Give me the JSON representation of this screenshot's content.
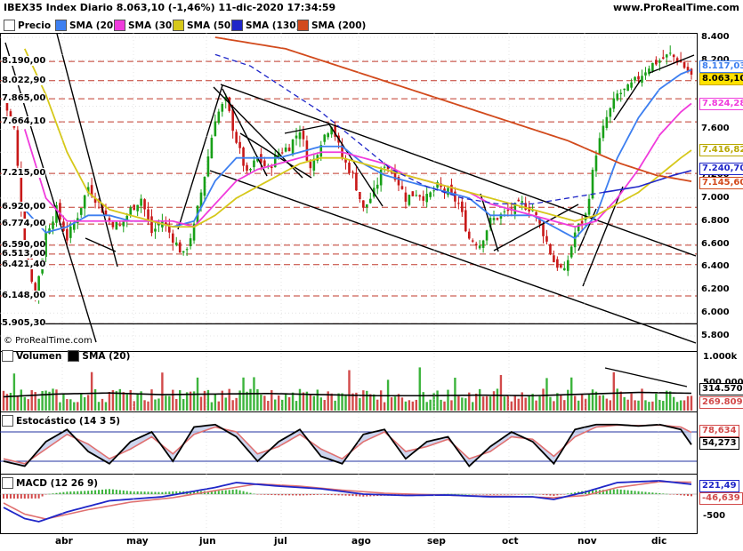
{
  "header": {
    "title": "IBEX35 Index Diario 8.063,10 (-1,46%) 11-dic-2020 17:34:59",
    "site": "www.ProRealTime.com",
    "copyright": "© ProRealTime.com"
  },
  "legend": [
    {
      "label": "Precio",
      "color": "#ffffff"
    },
    {
      "label": "SMA (20)",
      "color": "#3d7ff0"
    },
    {
      "label": "SMA (30)",
      "color": "#f03cdc"
    },
    {
      "label": "SMA (50)",
      "color": "#d6c81a"
    },
    {
      "label": "SMA (130)",
      "color": "#1f26c8"
    },
    {
      "label": "SMA (200)",
      "color": "#d24a1c"
    }
  ],
  "panes": {
    "volume": {
      "label": "Volumen",
      "sma_label": "SMA (20)"
    },
    "stochastic": {
      "label": "Estocástico (14 3 5)"
    },
    "macd": {
      "label": "MACD (12 26 9)"
    }
  },
  "levels": [
    "8.190,00",
    "8.022,90",
    "7.865,00",
    "7.664,10",
    "7.215,00",
    "6.920,00",
    "6.774,00",
    "6.590,00",
    "6.513,00",
    "6.421,40",
    "6.148,00",
    "5.905,30"
  ],
  "value_tags": [
    {
      "text": "8.117,03",
      "color": "#3d7ff0",
      "bg": "#ffffff"
    },
    {
      "text": "8.063,10",
      "color": "#000000",
      "bg": "#ffe200"
    },
    {
      "text": "7.824,28",
      "color": "#f03cdc",
      "bg": "#ffffff"
    },
    {
      "text": "7.416,82",
      "color": "#b8a800",
      "bg": "#ffffff"
    },
    {
      "text": "7.240,70",
      "color": "#1f26c8",
      "bg": "#ffffff"
    },
    {
      "text": "7.145,60",
      "color": "#d24a1c",
      "bg": "#ffffff"
    }
  ],
  "price_ticks": [
    "8.400",
    "8.200",
    "8.000",
    "7.800",
    "7.600",
    "7.400",
    "7.200",
    "7.000",
    "6.800",
    "6.600",
    "6.400",
    "6.200",
    "6.000",
    "5.800"
  ],
  "volume_ticks": [
    "1.000k",
    "500.000"
  ],
  "volume_tags": [
    {
      "text": "314.570",
      "color": "#000000"
    },
    {
      "text": "269.809",
      "color": "#d24a4a"
    }
  ],
  "stoch_tags": [
    {
      "text": "78,634",
      "color": "#d24a4a"
    },
    {
      "text": "54,273",
      "color": "#000000"
    }
  ],
  "macd_ticks": [
    "500",
    "-500"
  ],
  "macd_tags": [
    {
      "text": "221,49",
      "color": "#1f26c8"
    },
    {
      "text": "-46,639",
      "color": "#d24a4a"
    }
  ],
  "months": [
    "abr",
    "may",
    "jun",
    "jul",
    "ago",
    "sep",
    "oct",
    "nov",
    "dic"
  ],
  "chart_data": {
    "type": "candlestick",
    "instrument": "IBEX35 Index Diario",
    "last": 8063.1,
    "change_pct": -1.46,
    "ylim": [
      5750,
      8450
    ],
    "price_path": [
      [
        0,
        7850
      ],
      [
        3,
        7600
      ],
      [
        6,
        6600
      ],
      [
        9,
        6150
      ],
      [
        12,
        6700
      ],
      [
        15,
        6900
      ],
      [
        18,
        6650
      ],
      [
        21,
        6850
      ],
      [
        24,
        7100
      ],
      [
        27,
        6950
      ],
      [
        30,
        6800
      ],
      [
        33,
        6750
      ],
      [
        36,
        6900
      ],
      [
        39,
        7000
      ],
      [
        42,
        6700
      ],
      [
        45,
        6800
      ],
      [
        48,
        6650
      ],
      [
        51,
        6500
      ],
      [
        54,
        6750
      ],
      [
        57,
        7200
      ],
      [
        60,
        7700
      ],
      [
        63,
        7850
      ],
      [
        66,
        7500
      ],
      [
        69,
        7200
      ],
      [
        72,
        7350
      ],
      [
        75,
        7250
      ],
      [
        78,
        7400
      ],
      [
        81,
        7450
      ],
      [
        84,
        7600
      ],
      [
        87,
        7250
      ],
      [
        90,
        7500
      ],
      [
        93,
        7650
      ],
      [
        96,
        7350
      ],
      [
        99,
        7200
      ],
      [
        102,
        6900
      ],
      [
        105,
        7050
      ],
      [
        108,
        7300
      ],
      [
        111,
        7200
      ],
      [
        114,
        7000
      ],
      [
        117,
        7050
      ],
      [
        120,
        7000
      ],
      [
        123,
        7100
      ],
      [
        126,
        7050
      ],
      [
        129,
        6950
      ],
      [
        132,
        6650
      ],
      [
        135,
        6600
      ],
      [
        138,
        6800
      ],
      [
        141,
        6850
      ],
      [
        144,
        6900
      ],
      [
        147,
        6950
      ],
      [
        150,
        6900
      ],
      [
        153,
        6700
      ],
      [
        156,
        6450
      ],
      [
        159,
        6350
      ],
      [
        162,
        6700
      ],
      [
        165,
        6850
      ],
      [
        168,
        7400
      ],
      [
        171,
        7700
      ],
      [
        174,
        7900
      ],
      [
        177,
        7950
      ],
      [
        180,
        8050
      ],
      [
        183,
        8150
      ],
      [
        186,
        8200
      ],
      [
        189,
        8250
      ],
      [
        192,
        8180
      ],
      [
        195,
        8063
      ]
    ],
    "series": [
      {
        "name": "SMA (20)",
        "color": "#3d7ff0",
        "values": [
          [
            6,
            6900
          ],
          [
            12,
            6700
          ],
          [
            18,
            6750
          ],
          [
            24,
            6850
          ],
          [
            30,
            6850
          ],
          [
            36,
            6800
          ],
          [
            42,
            6800
          ],
          [
            48,
            6750
          ],
          [
            54,
            6800
          ],
          [
            60,
            7150
          ],
          [
            66,
            7350
          ],
          [
            72,
            7350
          ],
          [
            78,
            7350
          ],
          [
            84,
            7400
          ],
          [
            90,
            7450
          ],
          [
            96,
            7450
          ],
          [
            102,
            7300
          ],
          [
            108,
            7200
          ],
          [
            114,
            7150
          ],
          [
            120,
            7100
          ],
          [
            126,
            7050
          ],
          [
            132,
            7000
          ],
          [
            138,
            6850
          ],
          [
            144,
            6850
          ],
          [
            150,
            6850
          ],
          [
            156,
            6750
          ],
          [
            162,
            6650
          ],
          [
            168,
            6850
          ],
          [
            174,
            7350
          ],
          [
            180,
            7700
          ],
          [
            186,
            7950
          ],
          [
            192,
            8080
          ],
          [
            195,
            8117
          ]
        ]
      },
      {
        "name": "SMA (30)",
        "color": "#f03cdc",
        "values": [
          [
            6,
            7600
          ],
          [
            12,
            7000
          ],
          [
            18,
            6800
          ],
          [
            24,
            6800
          ],
          [
            30,
            6800
          ],
          [
            36,
            6800
          ],
          [
            42,
            6800
          ],
          [
            48,
            6800
          ],
          [
            54,
            6750
          ],
          [
            60,
            6950
          ],
          [
            66,
            7150
          ],
          [
            72,
            7250
          ],
          [
            78,
            7300
          ],
          [
            84,
            7350
          ],
          [
            90,
            7400
          ],
          [
            96,
            7400
          ],
          [
            102,
            7350
          ],
          [
            108,
            7300
          ],
          [
            114,
            7200
          ],
          [
            120,
            7150
          ],
          [
            126,
            7100
          ],
          [
            132,
            7050
          ],
          [
            138,
            6950
          ],
          [
            144,
            6900
          ],
          [
            150,
            6850
          ],
          [
            156,
            6800
          ],
          [
            162,
            6750
          ],
          [
            168,
            6800
          ],
          [
            174,
            7000
          ],
          [
            180,
            7250
          ],
          [
            186,
            7550
          ],
          [
            192,
            7750
          ],
          [
            195,
            7824
          ]
        ]
      },
      {
        "name": "SMA (50)",
        "color": "#d6c81a",
        "values": [
          [
            6,
            8300
          ],
          [
            12,
            7900
          ],
          [
            18,
            7400
          ],
          [
            24,
            7050
          ],
          [
            30,
            6900
          ],
          [
            36,
            6850
          ],
          [
            42,
            6800
          ],
          [
            48,
            6750
          ],
          [
            54,
            6750
          ],
          [
            60,
            6850
          ],
          [
            66,
            7000
          ],
          [
            72,
            7100
          ],
          [
            78,
            7200
          ],
          [
            84,
            7300
          ],
          [
            90,
            7350
          ],
          [
            96,
            7350
          ],
          [
            102,
            7300
          ],
          [
            108,
            7250
          ],
          [
            114,
            7200
          ],
          [
            120,
            7150
          ],
          [
            126,
            7100
          ],
          [
            132,
            7050
          ],
          [
            138,
            7000
          ],
          [
            144,
            6950
          ],
          [
            150,
            6900
          ],
          [
            156,
            6850
          ],
          [
            162,
            6800
          ],
          [
            168,
            6850
          ],
          [
            174,
            6950
          ],
          [
            180,
            7050
          ],
          [
            186,
            7200
          ],
          [
            192,
            7350
          ],
          [
            195,
            7417
          ]
        ]
      },
      {
        "name": "SMA (130)",
        "color": "#1f26c8",
        "values": [
          [
            60,
            8250
          ],
          [
            70,
            8150
          ],
          [
            80,
            7950
          ],
          [
            90,
            7750
          ],
          [
            100,
            7500
          ],
          [
            110,
            7250
          ],
          [
            120,
            7100
          ],
          [
            130,
            7000
          ],
          [
            140,
            6950
          ],
          [
            150,
            6950
          ],
          [
            160,
            7000
          ],
          [
            170,
            7050
          ],
          [
            180,
            7100
          ],
          [
            190,
            7200
          ],
          [
            195,
            7240
          ]
        ],
        "dashed_until": 170
      },
      {
        "name": "SMA (200)",
        "color": "#d24a1c",
        "values": [
          [
            60,
            8400
          ],
          [
            80,
            8300
          ],
          [
            100,
            8100
          ],
          [
            120,
            7900
          ],
          [
            140,
            7700
          ],
          [
            160,
            7500
          ],
          [
            175,
            7300
          ],
          [
            185,
            7200
          ],
          [
            195,
            7146
          ]
        ]
      }
    ],
    "volume_sma": [
      [
        0,
        250000
      ],
      [
        15,
        300000
      ],
      [
        30,
        320000
      ],
      [
        45,
        290000
      ],
      [
        60,
        300000
      ],
      [
        75,
        310000
      ],
      [
        90,
        290000
      ],
      [
        105,
        270000
      ],
      [
        120,
        270000
      ],
      [
        135,
        280000
      ],
      [
        150,
        270000
      ],
      [
        165,
        300000
      ],
      [
        180,
        330000
      ],
      [
        195,
        314570
      ]
    ],
    "stochastic_levels": [
      80,
      20
    ],
    "stochastic_k": [
      [
        0,
        20
      ],
      [
        6,
        10
      ],
      [
        12,
        60
      ],
      [
        18,
        85
      ],
      [
        24,
        40
      ],
      [
        30,
        15
      ],
      [
        36,
        60
      ],
      [
        42,
        80
      ],
      [
        48,
        20
      ],
      [
        54,
        90
      ],
      [
        60,
        95
      ],
      [
        66,
        70
      ],
      [
        72,
        20
      ],
      [
        78,
        60
      ],
      [
        84,
        85
      ],
      [
        90,
        30
      ],
      [
        96,
        15
      ],
      [
        102,
        75
      ],
      [
        108,
        85
      ],
      [
        114,
        25
      ],
      [
        120,
        60
      ],
      [
        126,
        70
      ],
      [
        132,
        10
      ],
      [
        138,
        50
      ],
      [
        144,
        80
      ],
      [
        150,
        60
      ],
      [
        156,
        15
      ],
      [
        162,
        85
      ],
      [
        168,
        95
      ],
      [
        174,
        95
      ],
      [
        180,
        92
      ],
      [
        186,
        95
      ],
      [
        192,
        85
      ],
      [
        195,
        54
      ]
    ],
    "stochastic_d": [
      [
        0,
        25
      ],
      [
        6,
        15
      ],
      [
        12,
        45
      ],
      [
        18,
        75
      ],
      [
        24,
        55
      ],
      [
        30,
        25
      ],
      [
        36,
        45
      ],
      [
        42,
        70
      ],
      [
        48,
        35
      ],
      [
        54,
        75
      ],
      [
        60,
        90
      ],
      [
        66,
        80
      ],
      [
        72,
        35
      ],
      [
        78,
        50
      ],
      [
        84,
        75
      ],
      [
        90,
        45
      ],
      [
        96,
        25
      ],
      [
        102,
        60
      ],
      [
        108,
        80
      ],
      [
        114,
        40
      ],
      [
        120,
        50
      ],
      [
        126,
        65
      ],
      [
        132,
        25
      ],
      [
        138,
        40
      ],
      [
        144,
        70
      ],
      [
        150,
        65
      ],
      [
        156,
        30
      ],
      [
        162,
        70
      ],
      [
        168,
        90
      ],
      [
        174,
        94
      ],
      [
        180,
        93
      ],
      [
        186,
        94
      ],
      [
        192,
        90
      ],
      [
        195,
        79
      ]
    ],
    "macd_line": [
      [
        0,
        -300
      ],
      [
        6,
        -550
      ],
      [
        10,
        -620
      ],
      [
        18,
        -400
      ],
      [
        30,
        -150
      ],
      [
        45,
        -60
      ],
      [
        60,
        150
      ],
      [
        66,
        260
      ],
      [
        78,
        180
      ],
      [
        90,
        120
      ],
      [
        102,
        0
      ],
      [
        114,
        -30
      ],
      [
        126,
        -20
      ],
      [
        138,
        -60
      ],
      [
        150,
        -60
      ],
      [
        156,
        -120
      ],
      [
        165,
        50
      ],
      [
        174,
        260
      ],
      [
        186,
        300
      ],
      [
        195,
        221
      ]
    ],
    "macd_signal": [
      [
        0,
        -200
      ],
      [
        6,
        -450
      ],
      [
        12,
        -560
      ],
      [
        24,
        -350
      ],
      [
        36,
        -180
      ],
      [
        48,
        -80
      ],
      [
        60,
        80
      ],
      [
        72,
        230
      ],
      [
        84,
        180
      ],
      [
        96,
        90
      ],
      [
        108,
        20
      ],
      [
        120,
        -10
      ],
      [
        132,
        -40
      ],
      [
        144,
        -50
      ],
      [
        156,
        -80
      ],
      [
        165,
        -30
      ],
      [
        174,
        150
      ],
      [
        186,
        280
      ],
      [
        195,
        268
      ]
    ]
  }
}
